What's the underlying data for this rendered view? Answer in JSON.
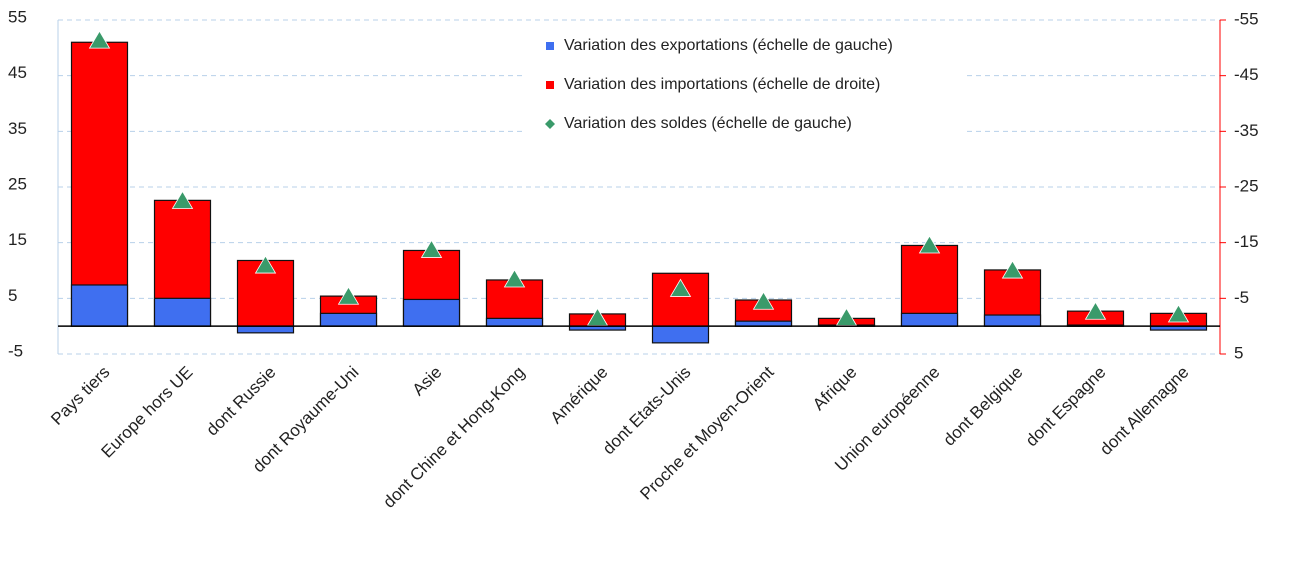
{
  "chart_data": {
    "type": "bar",
    "categories": [
      "Pays tiers",
      "Europe hors UE",
      "dont Russie",
      "dont Royaume-Uni",
      "Asie",
      "dont Chine et Hong-Kong",
      "Amérique",
      "dont Etats-Unis",
      "Proche et Moyen-Orient",
      "Afrique",
      "Union européenne",
      "dont Belgique",
      "dont Espagne",
      "dont Allemagne"
    ],
    "series": [
      {
        "name": "Variation des exportations (échelle de gauche)",
        "type": "bar",
        "color": "#3f6ff0",
        "values": [
          7.4,
          5.0,
          -1.2,
          2.3,
          4.8,
          1.4,
          -0.7,
          -3.0,
          0.9,
          0.2,
          2.3,
          2.0,
          0.2,
          -0.7
        ]
      },
      {
        "name": "Variation des importations (échelle de droite)",
        "type": "bar",
        "axis": "y2",
        "color": "#ff0000",
        "values": [
          -51.0,
          -22.6,
          -11.8,
          -5.4,
          -13.6,
          -8.3,
          -2.2,
          -9.5,
          -4.7,
          -1.4,
          -14.5,
          -10.1,
          -2.7,
          -2.3
        ]
      },
      {
        "name": "Variation des soldes (échelle de gauche)",
        "type": "scatter",
        "color": "#3a9a6a",
        "values": [
          51.2,
          22.4,
          10.8,
          5.2,
          13.6,
          8.3,
          1.4,
          6.6,
          4.3,
          1.4,
          14.4,
          9.9,
          2.5,
          2.0
        ]
      }
    ],
    "ylim": [
      -5,
      55
    ],
    "yticks": [
      -5,
      5,
      15,
      25,
      35,
      45,
      55
    ],
    "y2lim": [
      5,
      -55
    ],
    "y2ticks": [
      5,
      -5,
      -15,
      -25,
      -35,
      -45,
      -55
    ],
    "y2color": "#ff0000",
    "grid": true
  }
}
